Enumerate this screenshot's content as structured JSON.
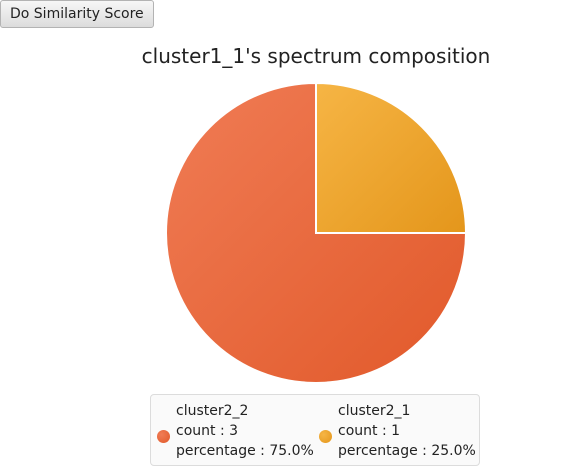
{
  "toolbar": {
    "score_button_label": "Do Similarity Score"
  },
  "chart_data": {
    "type": "pie",
    "title": "cluster1_1's spectrum composition",
    "series": [
      {
        "name": "cluster2_2",
        "count": 3,
        "percentage": 75.0,
        "count_text": "count : 3",
        "percentage_text": "percentage : 75.0%",
        "color": "#e1592a",
        "color_light": "#f07c55"
      },
      {
        "name": "cluster2_1",
        "count": 1,
        "percentage": 25.0,
        "count_text": "count : 1",
        "percentage_text": "percentage : 25.0%",
        "color": "#e4961b",
        "color_light": "#f6b545"
      }
    ],
    "legend_position": "bottom"
  }
}
